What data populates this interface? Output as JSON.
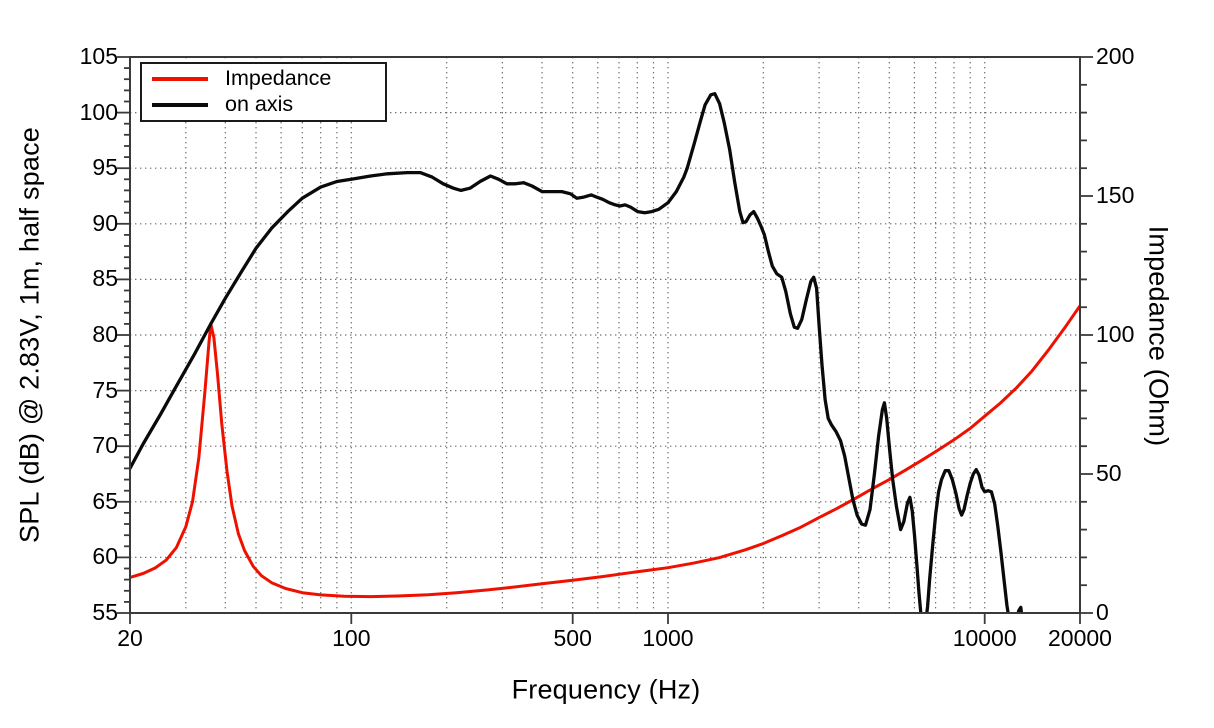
{
  "chart_data": {
    "type": "line",
    "title": "",
    "x_axis": {
      "label": "Frequency (Hz)",
      "scale": "log",
      "min": 20,
      "max": 20000,
      "ticks": [
        20,
        100,
        500,
        1000,
        10000,
        20000
      ],
      "gridlines": [
        30,
        40,
        50,
        60,
        70,
        80,
        90,
        100,
        200,
        300,
        400,
        500,
        600,
        700,
        800,
        900,
        1000,
        2000,
        3000,
        4000,
        5000,
        6000,
        7000,
        8000,
        9000,
        10000
      ]
    },
    "y_left": {
      "label": "SPL (dB) @ 2.83V, 1m, half space",
      "min": 55,
      "max": 105,
      "major_step": 5,
      "minor_step": 1,
      "ticks": [
        55,
        60,
        65,
        70,
        75,
        80,
        85,
        90,
        95,
        100,
        105
      ],
      "gridlines": [
        60,
        65,
        70,
        75,
        80,
        85,
        90,
        95,
        100
      ]
    },
    "y_right": {
      "label": "Impedance (Ohm)",
      "min": 0,
      "max": 200,
      "major_step": 50,
      "minor_step": 10,
      "ticks": [
        0,
        50,
        100,
        150,
        200
      ]
    },
    "legend_position": "top-left",
    "grid": true,
    "series": [
      {
        "name": "Impedance",
        "color": "#ee1100",
        "axis": "right",
        "points": [
          [
            20,
            12.8
          ],
          [
            22,
            14.2
          ],
          [
            24,
            16.2
          ],
          [
            26,
            19.0
          ],
          [
            28,
            23.5
          ],
          [
            30,
            31.0
          ],
          [
            31.5,
            40.0
          ],
          [
            33,
            56.0
          ],
          [
            34.5,
            80.0
          ],
          [
            35.5,
            97.0
          ],
          [
            36,
            104.0
          ],
          [
            36.8,
            99.0
          ],
          [
            37.8,
            86.0
          ],
          [
            39,
            68.0
          ],
          [
            40.5,
            51.0
          ],
          [
            42,
            38.5
          ],
          [
            44,
            28.5
          ],
          [
            46,
            22.5
          ],
          [
            49,
            16.8
          ],
          [
            52,
            13.4
          ],
          [
            56,
            10.9
          ],
          [
            62,
            8.8
          ],
          [
            70,
            7.3
          ],
          [
            80,
            6.5
          ],
          [
            95,
            6.0
          ],
          [
            115,
            5.9
          ],
          [
            140,
            6.1
          ],
          [
            175,
            6.6
          ],
          [
            215,
            7.3
          ],
          [
            270,
            8.3
          ],
          [
            330,
            9.4
          ],
          [
            400,
            10.5
          ],
          [
            500,
            11.8
          ],
          [
            620,
            13.1
          ],
          [
            760,
            14.5
          ],
          [
            900,
            15.6
          ],
          [
            1000,
            16.3
          ],
          [
            1200,
            17.9
          ],
          [
            1450,
            19.9
          ],
          [
            1750,
            22.7
          ],
          [
            2000,
            25.0
          ],
          [
            2300,
            27.9
          ],
          [
            2600,
            30.6
          ],
          [
            3000,
            34.3
          ],
          [
            3400,
            37.5
          ],
          [
            3900,
            41.2
          ],
          [
            4400,
            44.6
          ],
          [
            5000,
            48.0
          ],
          [
            5600,
            51.3
          ],
          [
            6300,
            54.8
          ],
          [
            7100,
            58.5
          ],
          [
            8000,
            62.3
          ],
          [
            9000,
            66.4
          ],
          [
            10000,
            70.8
          ],
          [
            11200,
            75.5
          ],
          [
            12600,
            81.0
          ],
          [
            14100,
            87.0
          ],
          [
            16000,
            95.0
          ],
          [
            18000,
            103.0
          ],
          [
            20000,
            110.5
          ]
        ]
      },
      {
        "name": "on axis",
        "color": "#0a0a0a",
        "axis": "left",
        "points": [
          [
            20,
            68.0
          ],
          [
            22,
            70.2
          ],
          [
            25,
            72.9
          ],
          [
            28,
            75.4
          ],
          [
            32,
            78.3
          ],
          [
            36,
            81.0
          ],
          [
            40,
            83.3
          ],
          [
            45,
            85.7
          ],
          [
            50,
            87.8
          ],
          [
            56,
            89.6
          ],
          [
            63,
            91.1
          ],
          [
            70,
            92.3
          ],
          [
            80,
            93.3
          ],
          [
            90,
            93.8
          ],
          [
            100,
            94.0
          ],
          [
            115,
            94.3
          ],
          [
            130,
            94.5
          ],
          [
            150,
            94.6
          ],
          [
            165,
            94.6
          ],
          [
            180,
            94.2
          ],
          [
            195,
            93.6
          ],
          [
            210,
            93.2
          ],
          [
            222,
            93.0
          ],
          [
            237,
            93.2
          ],
          [
            255,
            93.8
          ],
          [
            275,
            94.3
          ],
          [
            292,
            94.0
          ],
          [
            310,
            93.6
          ],
          [
            330,
            93.6
          ],
          [
            350,
            93.7
          ],
          [
            372,
            93.4
          ],
          [
            400,
            92.9
          ],
          [
            430,
            92.9
          ],
          [
            462,
            92.9
          ],
          [
            492,
            92.7
          ],
          [
            515,
            92.3
          ],
          [
            542,
            92.4
          ],
          [
            572,
            92.6
          ],
          [
            595,
            92.4
          ],
          [
            622,
            92.2
          ],
          [
            652,
            91.9
          ],
          [
            682,
            91.7
          ],
          [
            705,
            91.6
          ],
          [
            732,
            91.7
          ],
          [
            762,
            91.5
          ],
          [
            802,
            91.1
          ],
          [
            845,
            91.0
          ],
          [
            888,
            91.1
          ],
          [
            935,
            91.3
          ],
          [
            1000,
            91.9
          ],
          [
            1062,
            92.9
          ],
          [
            1122,
            94.2
          ],
          [
            1150,
            95.0
          ],
          [
            1210,
            97.2
          ],
          [
            1262,
            99.1
          ],
          [
            1310,
            100.7
          ],
          [
            1365,
            101.6
          ],
          [
            1405,
            101.7
          ],
          [
            1455,
            100.8
          ],
          [
            1505,
            99.1
          ],
          [
            1565,
            96.7
          ],
          [
            1625,
            93.7
          ],
          [
            1685,
            91.1
          ],
          [
            1725,
            90.1
          ],
          [
            1765,
            90.2
          ],
          [
            1815,
            90.8
          ],
          [
            1865,
            91.1
          ],
          [
            1915,
            90.5
          ],
          [
            1965,
            89.8
          ],
          [
            2015,
            89.0
          ],
          [
            2075,
            87.5
          ],
          [
            2135,
            86.2
          ],
          [
            2205,
            85.5
          ],
          [
            2285,
            85.2
          ],
          [
            2355,
            83.9
          ],
          [
            2435,
            81.9
          ],
          [
            2505,
            80.7
          ],
          [
            2565,
            80.6
          ],
          [
            2645,
            81.4
          ],
          [
            2735,
            83.2
          ],
          [
            2825,
            84.8
          ],
          [
            2885,
            85.2
          ],
          [
            2945,
            84.2
          ],
          [
            3005,
            80.6
          ],
          [
            3065,
            77.3
          ],
          [
            3135,
            74.2
          ],
          [
            3205,
            72.5
          ],
          [
            3285,
            71.9
          ],
          [
            3395,
            71.3
          ],
          [
            3505,
            70.5
          ],
          [
            3615,
            69.1
          ],
          [
            3725,
            67.1
          ],
          [
            3835,
            65.2
          ],
          [
            3955,
            63.8
          ],
          [
            4085,
            63.0
          ],
          [
            4205,
            62.9
          ],
          [
            4345,
            64.3
          ],
          [
            4485,
            67.5
          ],
          [
            4625,
            70.9
          ],
          [
            4755,
            73.3
          ],
          [
            4825,
            73.9
          ],
          [
            4905,
            72.5
          ],
          [
            5005,
            69.8
          ],
          [
            5125,
            67.0
          ],
          [
            5265,
            64.6
          ],
          [
            5425,
            62.5
          ],
          [
            5555,
            63.2
          ],
          [
            5705,
            64.9
          ],
          [
            5805,
            65.4
          ],
          [
            5905,
            64.2
          ],
          [
            6005,
            62.0
          ],
          [
            6105,
            59.4
          ],
          [
            6205,
            56.8
          ],
          [
            6305,
            54.6
          ],
          [
            6405,
            53.4
          ],
          [
            6505,
            54.0
          ],
          [
            6605,
            55.6
          ],
          [
            6705,
            58.1
          ],
          [
            6855,
            61.1
          ],
          [
            7005,
            63.9
          ],
          [
            7155,
            65.9
          ],
          [
            7305,
            67.0
          ],
          [
            7505,
            67.8
          ],
          [
            7705,
            67.8
          ],
          [
            7905,
            67.0
          ],
          [
            8105,
            65.8
          ],
          [
            8305,
            64.4
          ],
          [
            8455,
            63.8
          ],
          [
            8605,
            64.3
          ],
          [
            8805,
            65.6
          ],
          [
            9005,
            66.7
          ],
          [
            9205,
            67.5
          ],
          [
            9405,
            67.9
          ],
          [
            9605,
            67.4
          ],
          [
            9805,
            66.3
          ],
          [
            10005,
            65.9
          ],
          [
            10255,
            66.0
          ],
          [
            10505,
            65.9
          ],
          [
            10755,
            64.8
          ],
          [
            11005,
            62.8
          ],
          [
            11255,
            60.5
          ],
          [
            11505,
            58.0
          ],
          [
            11755,
            55.7
          ],
          [
            12005,
            54.0
          ],
          [
            12255,
            53.2
          ],
          [
            12505,
            53.9
          ],
          [
            12805,
            55.2
          ],
          [
            13005,
            55.5
          ],
          [
            13205,
            53.9
          ],
          [
            13405,
            52.4
          ]
        ]
      }
    ]
  }
}
